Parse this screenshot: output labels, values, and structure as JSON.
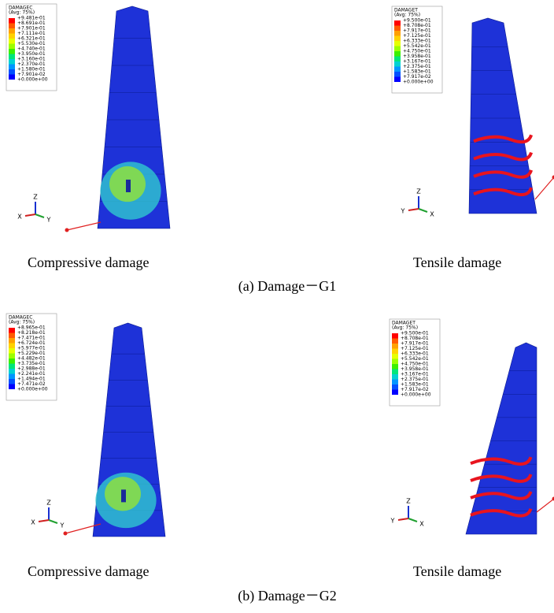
{
  "panels": [
    {
      "legend_title": "DAMAGEC",
      "legend_avg": "(Avg: 75%)",
      "legend_values": [
        "+9.481e-01",
        "+8.691e-01",
        "+7.901e-01",
        "+7.111e-01",
        "+6.321e-01",
        "+5.530e-01",
        "+4.740e-01",
        "+3.950e-01",
        "+3.160e-01",
        "+2.370e-01",
        "+1.580e-01",
        "+7.901e-02",
        "+0.000e+00"
      ],
      "axes": [
        "Z",
        "X",
        "Y"
      ],
      "caption": "Compressive damage"
    },
    {
      "legend_title": "DAMAGET",
      "legend_avg": "(Avg: 75%)",
      "legend_values": [
        "+9.500e-01",
        "+8.708e-01",
        "+7.917e-01",
        "+7.125e-01",
        "+6.333e-01",
        "+5.542e-01",
        "+4.750e-01",
        "+3.958e-01",
        "+3.167e-01",
        "+2.375e-01",
        "+1.583e-01",
        "+7.917e-02",
        "+0.000e+00"
      ],
      "axes": [
        "Z",
        "Y",
        "X"
      ],
      "caption": "Tensile damage"
    },
    {
      "legend_title": "DAMAGEC",
      "legend_avg": "(Avg: 75%)",
      "legend_values": [
        "+8.965e-01",
        "+8.218e-01",
        "+7.471e-01",
        "+6.724e-01",
        "+5.977e-01",
        "+5.229e-01",
        "+4.482e-01",
        "+3.735e-01",
        "+2.988e-01",
        "+2.241e-01",
        "+1.494e-01",
        "+7.471e-02",
        "+0.000e+00"
      ],
      "axes": [
        "Z",
        "X",
        "Y"
      ],
      "caption": "Compressive damage"
    },
    {
      "legend_title": "DAMAGET",
      "legend_avg": "(Avg: 75%)",
      "legend_values": [
        "+9.500e-01",
        "+8.708e-01",
        "+7.917e-01",
        "+7.125e-01",
        "+6.333e-01",
        "+5.542e-01",
        "+4.750e-01",
        "+3.958e-01",
        "+3.167e-01",
        "+2.375e-01",
        "+1.583e-01",
        "+7.917e-02",
        "+0.000e+00"
      ],
      "axes": [
        "Z",
        "Y",
        "X"
      ],
      "caption": "Tensile damage"
    }
  ],
  "subcaptions": [
    "(a) Damage－G1",
    "(b) Damage－G2"
  ]
}
